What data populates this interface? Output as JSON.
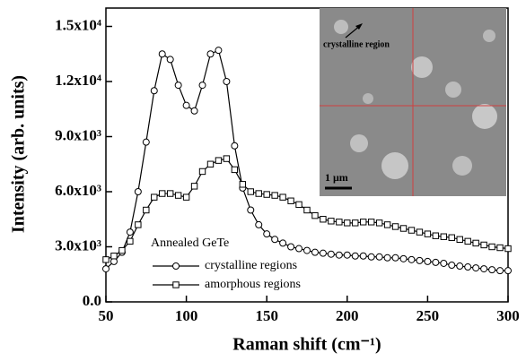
{
  "chart_data": {
    "type": "line",
    "xlabel": "Raman shift (cm⁻¹)",
    "ylabel": "Intensity (arb. units)",
    "legend_title": "Annealed GeTe",
    "legend": "lower left",
    "inset": {
      "label": "crystalline region",
      "scale_bar": "1 μm"
    },
    "x": [
      50,
      55,
      60,
      65,
      70,
      75,
      80,
      85,
      90,
      95,
      100,
      105,
      110,
      115,
      120,
      125,
      130,
      135,
      140,
      145,
      150,
      155,
      160,
      165,
      170,
      175,
      180,
      185,
      190,
      195,
      200,
      205,
      210,
      215,
      220,
      225,
      230,
      235,
      240,
      245,
      250,
      255,
      260,
      265,
      270,
      275,
      280,
      285,
      290,
      295,
      300
    ],
    "series": [
      {
        "name": "crystalline regions",
        "marker": "circle",
        "color": "#000000",
        "values": [
          1800,
          2200,
          2700,
          3800,
          6000,
          8700,
          11500,
          13500,
          13200,
          11800,
          10700,
          10400,
          11800,
          13500,
          13700,
          12000,
          8500,
          6200,
          5000,
          4200,
          3700,
          3400,
          3200,
          3000,
          2900,
          2800,
          2700,
          2650,
          2600,
          2550,
          2550,
          2500,
          2500,
          2450,
          2450,
          2400,
          2400,
          2350,
          2300,
          2250,
          2200,
          2150,
          2100,
          2000,
          1950,
          1900,
          1850,
          1800,
          1750,
          1700,
          1700
        ]
      },
      {
        "name": "amorphous regions",
        "marker": "square",
        "color": "#000000",
        "values": [
          2300,
          2500,
          2800,
          3300,
          4200,
          5000,
          5700,
          5900,
          5900,
          5800,
          5700,
          6300,
          7100,
          7500,
          7700,
          7800,
          7200,
          6400,
          6000,
          5900,
          5850,
          5800,
          5700,
          5500,
          5300,
          5000,
          4700,
          4500,
          4400,
          4350,
          4300,
          4300,
          4350,
          4350,
          4300,
          4200,
          4100,
          4000,
          3900,
          3800,
          3700,
          3600,
          3550,
          3500,
          3400,
          3300,
          3200,
          3100,
          3000,
          2950,
          2900
        ]
      }
    ],
    "xlim": [
      50,
      300
    ],
    "xticks": [
      50,
      100,
      150,
      200,
      250,
      300
    ],
    "ylim": [
      0,
      16000
    ],
    "yticks": [
      {
        "value": 0,
        "label": "0.0"
      },
      {
        "value": 3000,
        "label": "3.0x10³"
      },
      {
        "value": 6000,
        "label": "6.0x10³"
      },
      {
        "value": 9000,
        "label": "9.0x10³"
      },
      {
        "value": 12000,
        "label": "1.2x10⁴"
      },
      {
        "value": 15000,
        "label": "1.5x10⁴"
      }
    ]
  }
}
